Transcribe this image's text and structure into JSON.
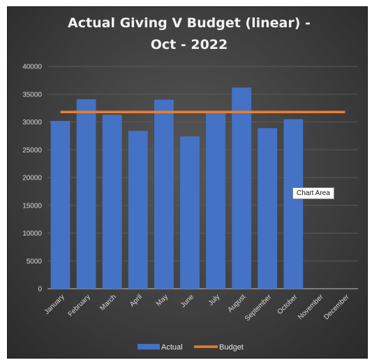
{
  "chart_data": {
    "type": "bar",
    "title_lines": [
      "Actual Giving V Budget (linear) -",
      "Oct - 2022"
    ],
    "categories": [
      "January",
      "February",
      "March",
      "April",
      "May",
      "June",
      "July",
      "August",
      "September",
      "October",
      "November",
      "December"
    ],
    "series": [
      {
        "name": "Actual",
        "type": "bar",
        "color": "#4472c4",
        "values": [
          30200,
          34100,
          31300,
          28400,
          34000,
          27400,
          31600,
          36200,
          28900,
          30500,
          null,
          null
        ]
      },
      {
        "name": "Budget",
        "type": "line",
        "color": "#ed7d31",
        "values_constant": 31800
      }
    ],
    "y_ticks": [
      "0",
      "5000",
      "10000",
      "15000",
      "20000",
      "25000",
      "30000",
      "35000",
      "40000"
    ],
    "ylim": [
      0,
      40000
    ],
    "grid": true,
    "legend_position": "bottom"
  },
  "tooltip": {
    "text": "Chart Area"
  },
  "colors": {
    "background": "#3f3f3f",
    "bar": "#4472c4",
    "budget_line": "#ed7d31",
    "gridline": "#5a5a5a"
  }
}
